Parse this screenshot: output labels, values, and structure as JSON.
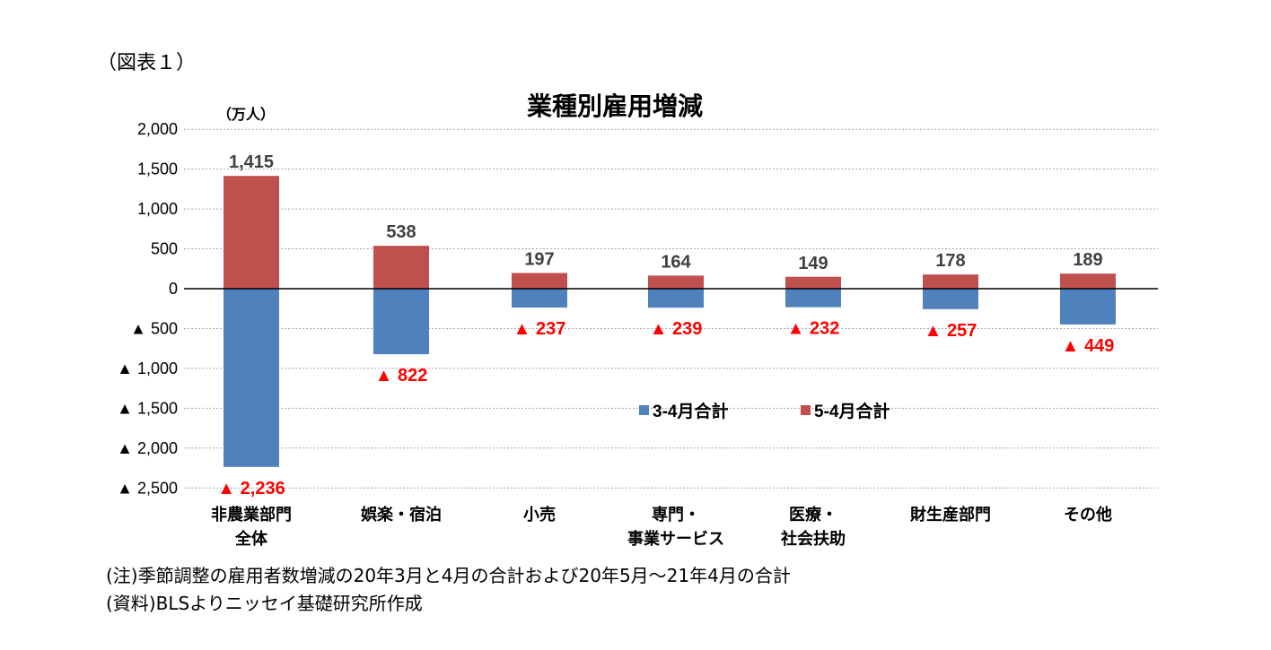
{
  "figure_label": "（図表１）",
  "notes": {
    "note": "(注)季節調整の雇用者数増減の20年3月と4月の合計および20年5月～21年4月の合計",
    "source": "(資料)BLSよりニッセイ基礎研究所作成"
  },
  "chart_data": {
    "type": "bar",
    "stacked": true,
    "title": "業種別雇用増減",
    "unit_label": "（万人）",
    "categories": [
      [
        "非農業部門",
        "全体"
      ],
      [
        "娯楽・宿泊"
      ],
      [
        "小売"
      ],
      [
        "専門・",
        "事業サービス"
      ],
      [
        "医療・",
        "社会扶助"
      ],
      [
        "財生産部門"
      ],
      [
        "その他"
      ]
    ],
    "series": [
      {
        "name": "3-4月合計",
        "color": "#4F81BD",
        "values": [
          -2236,
          -822,
          -237,
          -239,
          -232,
          -257,
          -449
        ]
      },
      {
        "name": "5-4月合計",
        "color": "#C0504D",
        "values": [
          1415,
          538,
          197,
          164,
          149,
          178,
          189
        ]
      }
    ],
    "positive_labels": [
      "1,415",
      "538",
      "197",
      "164",
      "149",
      "178",
      "189"
    ],
    "negative_labels": [
      "▲ 2,236",
      "▲ 822",
      "▲ 237",
      "▲ 239",
      "▲ 232",
      "▲ 257",
      "▲ 449"
    ],
    "negative_label_color": "#FF0000",
    "yticks": [
      2000,
      1500,
      1000,
      500,
      0,
      -500,
      -1000,
      -1500,
      -2000,
      -2500
    ],
    "ytick_labels": [
      "2,000",
      "1,500",
      "1,000",
      "500",
      "0",
      "▲ 500",
      "▲ 1,000",
      "▲ 1,500",
      "▲ 2,000",
      "▲ 2,500"
    ],
    "ylim": [
      -2500,
      2000
    ],
    "grid": true,
    "legend_position": "center-right"
  }
}
